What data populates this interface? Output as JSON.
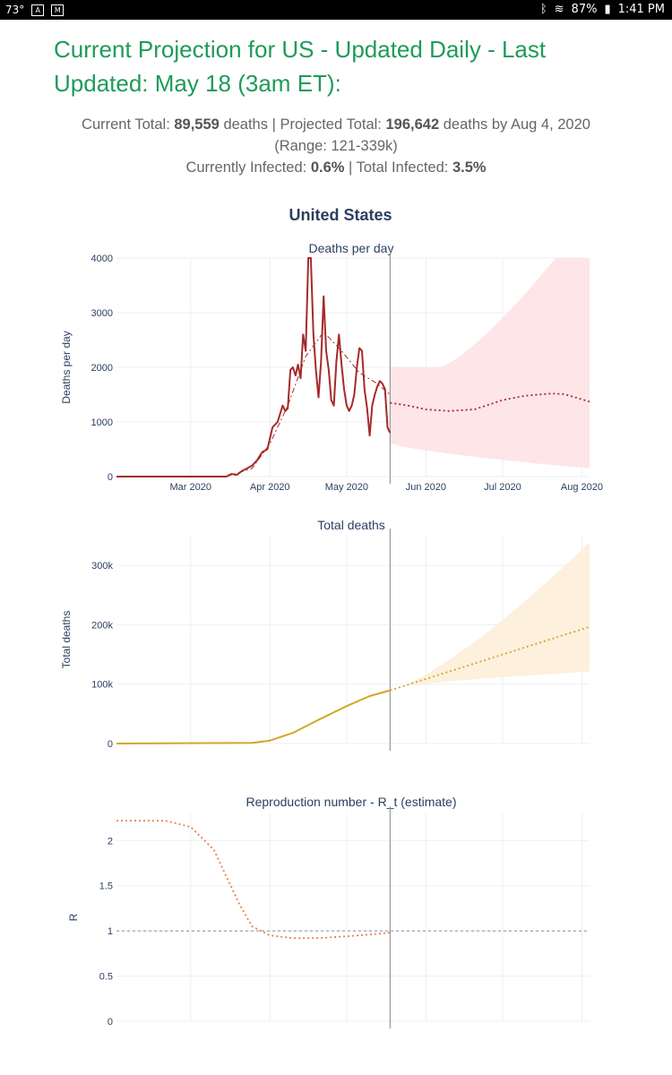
{
  "status_bar": {
    "temperature": "73°",
    "battery": "87%",
    "time": "1:41 PM"
  },
  "page_title": "Current Projection for US - Updated Daily - Last Updated: May 18 (3am ET):",
  "summary": {
    "current_total_label": "Current Total:",
    "current_total_value": "89,559",
    "current_total_unit": "deaths",
    "projected_total_label": "Projected Total:",
    "projected_total_value": "196,642",
    "projected_total_suffix": "deaths by Aug 4, 2020",
    "range": "(Range: 121-339k)",
    "currently_infected_label": "Currently Infected:",
    "currently_infected_value": "0.6%",
    "total_infected_label": "Total Infected:",
    "total_infected_value": "3.5%"
  },
  "chart_main_title": "United States",
  "chart_data": [
    {
      "type": "line",
      "title": "Deaths per day",
      "ylabel": "Deaths per day",
      "ylim": [
        0,
        4000
      ],
      "yticks": [
        "0",
        "1000",
        "2000",
        "3000",
        "4000"
      ],
      "xticks": [
        "Mar 2020",
        "Apr 2020",
        "May 2020",
        "Jun 2020",
        "Jul 2020",
        "Aug 2020"
      ],
      "series": [
        {
          "style": "solid",
          "color": "#a52a2a",
          "x": [
            "2020-02-01",
            "2020-03-01",
            "2020-03-15",
            "2020-03-17",
            "2020-03-19",
            "2020-03-21",
            "2020-03-23",
            "2020-03-25",
            "2020-03-27",
            "2020-03-29",
            "2020-03-31",
            "2020-04-02",
            "2020-04-04",
            "2020-04-06",
            "2020-04-07",
            "2020-04-08",
            "2020-04-09",
            "2020-04-10",
            "2020-04-11",
            "2020-04-12",
            "2020-04-13",
            "2020-04-14",
            "2020-04-15",
            "2020-04-16",
            "2020-04-17",
            "2020-04-18",
            "2020-04-19",
            "2020-04-20",
            "2020-04-21",
            "2020-04-22",
            "2020-04-23",
            "2020-04-24",
            "2020-04-25",
            "2020-04-26",
            "2020-04-27",
            "2020-04-28",
            "2020-04-29",
            "2020-04-30",
            "2020-05-01",
            "2020-05-02",
            "2020-05-03",
            "2020-05-04",
            "2020-05-05",
            "2020-05-06",
            "2020-05-07",
            "2020-05-08",
            "2020-05-09",
            "2020-05-10",
            "2020-05-11",
            "2020-05-12",
            "2020-05-13",
            "2020-05-14",
            "2020-05-15",
            "2020-05-16",
            "2020-05-17",
            "2020-05-18"
          ],
          "values": [
            0,
            0,
            0,
            50,
            30,
            100,
            150,
            200,
            300,
            450,
            500,
            900,
            1000,
            1300,
            1200,
            1250,
            1950,
            2000,
            1850,
            2050,
            1800,
            2600,
            2300,
            4000,
            4000,
            2600,
            1950,
            1450,
            2100,
            3300,
            2300,
            1950,
            1400,
            1300,
            2100,
            2600,
            2050,
            1600,
            1300,
            1200,
            1300,
            1500,
            2000,
            2350,
            2300,
            1600,
            1250,
            750,
            1300,
            1500,
            1650,
            1750,
            1700,
            1600,
            900,
            800
          ]
        },
        {
          "style": "dashdot",
          "color": "#a52a2a",
          "x": [
            "2020-03-15",
            "2020-03-25",
            "2020-04-01",
            "2020-04-08",
            "2020-04-15",
            "2020-04-22",
            "2020-04-29",
            "2020-05-06",
            "2020-05-13",
            "2020-05-18"
          ],
          "values": [
            0,
            150,
            600,
            1300,
            2200,
            2650,
            2300,
            1900,
            1700,
            1500
          ]
        },
        {
          "style": "dotted",
          "color": "#a52a2a",
          "x": [
            "2020-05-18",
            "2020-05-25",
            "2020-06-01",
            "2020-06-10",
            "2020-06-20",
            "2020-07-01",
            "2020-07-10",
            "2020-07-20",
            "2020-07-25",
            "2020-08-04"
          ],
          "values": [
            1350,
            1300,
            1230,
            1200,
            1230,
            1400,
            1480,
            1520,
            1510,
            1370
          ]
        }
      ],
      "confidence_band": {
        "color": "#fde5e8",
        "upper_end": 4000,
        "lower_end": 150
      }
    },
    {
      "type": "line",
      "title": "Total deaths",
      "ylabel": "Total deaths",
      "ylim": [
        0,
        350000
      ],
      "yticks": [
        "0",
        "100k",
        "200k",
        "300k"
      ],
      "series": [
        {
          "style": "solid",
          "color": "#d4a626",
          "x": [
            "2020-02-01",
            "2020-03-25",
            "2020-04-01",
            "2020-04-10",
            "2020-04-20",
            "2020-05-01",
            "2020-05-10",
            "2020-05-18"
          ],
          "values": [
            0,
            1000,
            5000,
            18000,
            40000,
            63000,
            80000,
            89559
          ]
        },
        {
          "style": "dotted",
          "color": "#d4a626",
          "x": [
            "2020-05-18",
            "2020-08-04"
          ],
          "values": [
            89559,
            196642
          ]
        }
      ],
      "confidence_band": {
        "color": "#fdf0dc",
        "upper_end": 339000,
        "lower_end": 121000
      }
    },
    {
      "type": "line",
      "title": "Reproduction number - R_t (estimate)",
      "ylabel": "R",
      "ylim": [
        0,
        2.3
      ],
      "yticks": [
        "0",
        "0.5",
        "1",
        "1.5",
        "2"
      ],
      "reference_line": 1,
      "series": [
        {
          "style": "dotted",
          "color": "#e8804f",
          "x": [
            "2020-02-01",
            "2020-02-20",
            "2020-03-01",
            "2020-03-10",
            "2020-03-20",
            "2020-03-25",
            "2020-04-01",
            "2020-04-10",
            "2020-04-20",
            "2020-05-01",
            "2020-05-10",
            "2020-05-18"
          ],
          "values": [
            2.22,
            2.22,
            2.15,
            1.9,
            1.3,
            1.05,
            0.95,
            0.92,
            0.92,
            0.94,
            0.96,
            0.98
          ]
        }
      ]
    }
  ]
}
